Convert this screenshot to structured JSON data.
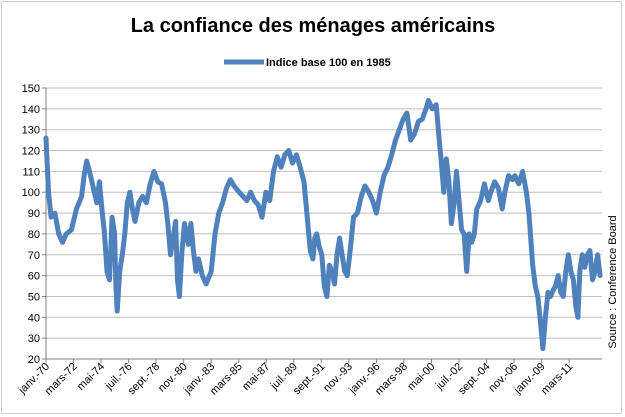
{
  "chart_data": {
    "type": "line",
    "title": "La confiance des ménages américains",
    "legend": {
      "placement": "top",
      "entries": [
        "Indice base 100 en 1985"
      ]
    },
    "source": "Source : Conference Board",
    "xlabel": "",
    "ylabel": "",
    "ylim": [
      20,
      150
    ],
    "y_ticks": [
      20,
      30,
      40,
      50,
      60,
      70,
      80,
      90,
      100,
      110,
      120,
      130,
      140,
      150
    ],
    "grid": {
      "horizontal": true,
      "vertical": false
    },
    "line_color": "#4f81bd",
    "x_tick_labels": [
      "janv.-70",
      "mars-72",
      "mai-74",
      "juil.-76",
      "sept.-78",
      "nov.-80",
      "janv.-83",
      "mars-85",
      "mai-87",
      "juil.-89",
      "sept.-91",
      "nov.-93",
      "janv.-96",
      "mars-98",
      "mai-00",
      "juil.-02",
      "sept.-04",
      "nov.-06",
      "janv.-09",
      "mars-11"
    ],
    "x_tick_years": [
      1970.0,
      1972.167,
      1974.333,
      1976.5,
      1978.667,
      1980.833,
      1983.0,
      1985.167,
      1987.333,
      1989.5,
      1991.667,
      1993.833,
      1996.0,
      1998.167,
      2000.333,
      2002.5,
      2004.667,
      2006.833,
      2009.0,
      2011.167
    ],
    "series": [
      {
        "name": "Indice base 100 en 1985",
        "points": [
          [
            1970.0,
            126
          ],
          [
            1970.2,
            100
          ],
          [
            1970.4,
            88
          ],
          [
            1970.7,
            90
          ],
          [
            1971.0,
            80
          ],
          [
            1971.3,
            76
          ],
          [
            1971.6,
            80
          ],
          [
            1972.0,
            82
          ],
          [
            1972.4,
            92
          ],
          [
            1972.8,
            98
          ],
          [
            1973.0,
            108
          ],
          [
            1973.2,
            115
          ],
          [
            1973.5,
            108
          ],
          [
            1973.8,
            100
          ],
          [
            1974.0,
            95
          ],
          [
            1974.2,
            105
          ],
          [
            1974.4,
            92
          ],
          [
            1974.6,
            80
          ],
          [
            1974.8,
            62
          ],
          [
            1975.0,
            58
          ],
          [
            1975.2,
            88
          ],
          [
            1975.4,
            80
          ],
          [
            1975.5,
            55
          ],
          [
            1975.6,
            43
          ],
          [
            1975.8,
            62
          ],
          [
            1976.0,
            70
          ],
          [
            1976.2,
            80
          ],
          [
            1976.4,
            95
          ],
          [
            1976.6,
            100
          ],
          [
            1976.8,
            92
          ],
          [
            1977.0,
            86
          ],
          [
            1977.3,
            95
          ],
          [
            1977.6,
            98
          ],
          [
            1977.9,
            95
          ],
          [
            1978.2,
            104
          ],
          [
            1978.5,
            110
          ],
          [
            1978.8,
            105
          ],
          [
            1979.1,
            104
          ],
          [
            1979.4,
            95
          ],
          [
            1979.6,
            84
          ],
          [
            1979.8,
            70
          ],
          [
            1980.0,
            78
          ],
          [
            1980.2,
            86
          ],
          [
            1980.35,
            58
          ],
          [
            1980.5,
            50
          ],
          [
            1980.7,
            72
          ],
          [
            1980.9,
            85
          ],
          [
            1981.2,
            75
          ],
          [
            1981.4,
            85
          ],
          [
            1981.6,
            72
          ],
          [
            1981.8,
            62
          ],
          [
            1982.0,
            68
          ],
          [
            1982.3,
            60
          ],
          [
            1982.6,
            56
          ],
          [
            1983.0,
            62
          ],
          [
            1983.3,
            80
          ],
          [
            1983.6,
            90
          ],
          [
            1983.9,
            95
          ],
          [
            1984.2,
            102
          ],
          [
            1984.5,
            106
          ],
          [
            1984.8,
            103
          ],
          [
            1985.2,
            100
          ],
          [
            1985.5,
            98
          ],
          [
            1985.8,
            96
          ],
          [
            1986.1,
            100
          ],
          [
            1986.4,
            96
          ],
          [
            1986.7,
            94
          ],
          [
            1987.0,
            88
          ],
          [
            1987.3,
            100
          ],
          [
            1987.6,
            96
          ],
          [
            1987.9,
            110
          ],
          [
            1988.2,
            117
          ],
          [
            1988.5,
            112
          ],
          [
            1988.8,
            118
          ],
          [
            1989.1,
            120
          ],
          [
            1989.4,
            114
          ],
          [
            1989.7,
            118
          ],
          [
            1990.0,
            112
          ],
          [
            1990.3,
            105
          ],
          [
            1990.6,
            85
          ],
          [
            1990.8,
            72
          ],
          [
            1991.0,
            68
          ],
          [
            1991.15,
            78
          ],
          [
            1991.3,
            80
          ],
          [
            1991.5,
            74
          ],
          [
            1991.7,
            70
          ],
          [
            1991.9,
            55
          ],
          [
            1992.1,
            50
          ],
          [
            1992.3,
            65
          ],
          [
            1992.5,
            62
          ],
          [
            1992.7,
            56
          ],
          [
            1992.9,
            70
          ],
          [
            1993.1,
            78
          ],
          [
            1993.3,
            70
          ],
          [
            1993.5,
            62
          ],
          [
            1993.7,
            60
          ],
          [
            1993.9,
            70
          ],
          [
            1994.2,
            88
          ],
          [
            1994.5,
            90
          ],
          [
            1994.8,
            98
          ],
          [
            1995.1,
            103
          ],
          [
            1995.4,
            100
          ],
          [
            1995.7,
            96
          ],
          [
            1996.0,
            90
          ],
          [
            1996.3,
            100
          ],
          [
            1996.6,
            108
          ],
          [
            1996.9,
            112
          ],
          [
            1997.2,
            118
          ],
          [
            1997.5,
            125
          ],
          [
            1997.8,
            130
          ],
          [
            1998.1,
            135
          ],
          [
            1998.4,
            138
          ],
          [
            1998.7,
            125
          ],
          [
            1999.0,
            128
          ],
          [
            1999.3,
            134
          ],
          [
            1999.6,
            135
          ],
          [
            1999.9,
            140
          ],
          [
            2000.1,
            144
          ],
          [
            2000.4,
            140
          ],
          [
            2000.7,
            142
          ],
          [
            2000.9,
            128
          ],
          [
            2001.1,
            115
          ],
          [
            2001.3,
            100
          ],
          [
            2001.5,
            116
          ],
          [
            2001.7,
            105
          ],
          [
            2001.9,
            85
          ],
          [
            2002.1,
            94
          ],
          [
            2002.3,
            110
          ],
          [
            2002.5,
            96
          ],
          [
            2002.7,
            82
          ],
          [
            2002.9,
            80
          ],
          [
            2003.1,
            62
          ],
          [
            2003.3,
            80
          ],
          [
            2003.5,
            76
          ],
          [
            2003.7,
            80
          ],
          [
            2003.9,
            92
          ],
          [
            2004.2,
            96
          ],
          [
            2004.5,
            104
          ],
          [
            2004.8,
            96
          ],
          [
            2005.0,
            100
          ],
          [
            2005.3,
            105
          ],
          [
            2005.6,
            102
          ],
          [
            2005.9,
            92
          ],
          [
            2006.1,
            100
          ],
          [
            2006.4,
            108
          ],
          [
            2006.7,
            106
          ],
          [
            2006.9,
            108
          ],
          [
            2007.2,
            104
          ],
          [
            2007.5,
            110
          ],
          [
            2007.8,
            100
          ],
          [
            2008.0,
            90
          ],
          [
            2008.3,
            65
          ],
          [
            2008.5,
            55
          ],
          [
            2008.7,
            50
          ],
          [
            2008.9,
            38
          ],
          [
            2009.1,
            25
          ],
          [
            2009.3,
            40
          ],
          [
            2009.5,
            52
          ],
          [
            2009.7,
            50
          ],
          [
            2009.9,
            53
          ],
          [
            2010.1,
            55
          ],
          [
            2010.3,
            60
          ],
          [
            2010.5,
            52
          ],
          [
            2010.7,
            50
          ],
          [
            2010.9,
            62
          ],
          [
            2011.1,
            70
          ],
          [
            2011.3,
            62
          ],
          [
            2011.5,
            58
          ],
          [
            2011.7,
            45
          ],
          [
            2011.85,
            40
          ],
          [
            2012.0,
            62
          ],
          [
            2012.2,
            70
          ],
          [
            2012.4,
            64
          ],
          [
            2012.6,
            70
          ],
          [
            2012.8,
            72
          ],
          [
            2013.0,
            58
          ],
          [
            2013.2,
            62
          ],
          [
            2013.4,
            70
          ],
          [
            2013.6,
            60
          ]
        ]
      }
    ]
  }
}
